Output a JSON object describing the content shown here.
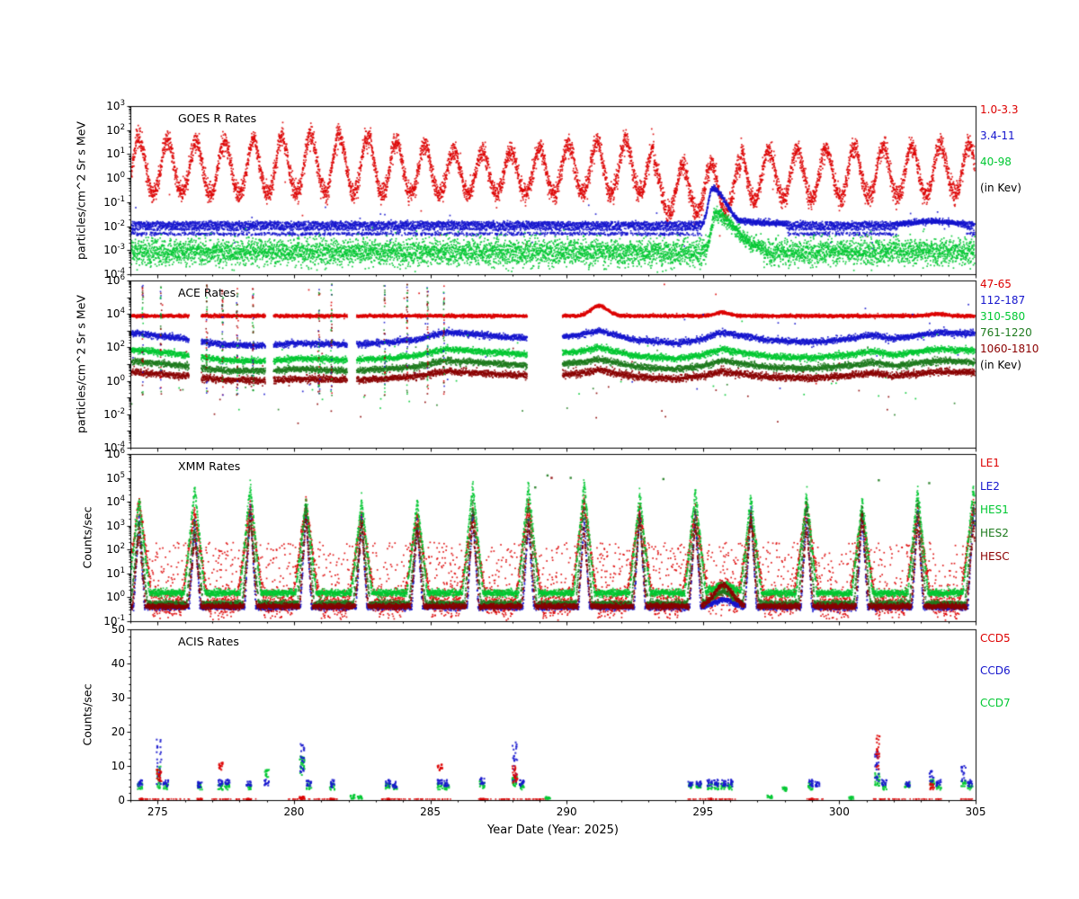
{
  "figure": {
    "xlabel": "Year Date (Year: 2025)",
    "background": "#ffffff",
    "axis_color": "#000000",
    "x_range": [
      274,
      305
    ],
    "x_ticks": [
      275,
      280,
      285,
      290,
      295,
      300,
      305
    ]
  },
  "colors": {
    "red": "#dd0000",
    "blue": "#1515cd",
    "green": "#00c832",
    "darkgreen": "#1e7b1e",
    "maroon": "#8b0000",
    "black": "#000000"
  },
  "chart_data": [
    {
      "type": "scatter",
      "title": "GOES R Rates",
      "ylabel": "particles/cm^2 Sr s MeV",
      "yscale": "log",
      "ylim": [
        0.0001,
        1000.0
      ],
      "xlim": [
        274,
        305
      ],
      "ytick_exponents": [
        3,
        2,
        1,
        0,
        -1,
        -2,
        -3,
        -4
      ],
      "legend": [
        {
          "label": "1.0-3.3",
          "color": "red"
        },
        {
          "label": "3.4-11",
          "color": "blue"
        },
        {
          "label": "40-98",
          "color": "green"
        },
        {
          "label": "(in Kev)",
          "color": "black"
        }
      ],
      "series": [
        {
          "name": "1.0-3.3",
          "color": "red",
          "kind": "oscillating",
          "step": 0.0045,
          "period": 1.05,
          "base_log": -0.62,
          "amp_log": 2.1,
          "amp_mod": 0.45,
          "noise": 0.22,
          "power": 1.15,
          "drop_prob": 0.0015,
          "quiet": {
            "from": 293.2,
            "to": 296.4,
            "base_log": -1.45,
            "amp_log": 2.0
          },
          "after": {
            "from": 296.4,
            "base_log": -0.9,
            "amp_log": 2.05,
            "recover_per_day": 0.03
          }
        },
        {
          "name": "3.4-11",
          "color": "blue",
          "kind": "banded",
          "step": 0.0045,
          "levels_log": [
            -2.32,
            -2.12,
            -2.02,
            -1.94,
            -1.86
          ],
          "noise": 0.035,
          "outlier_prob": 0.004,
          "event": {
            "t0": 295.35,
            "rise_w": 0.16,
            "fall_w": 0.5,
            "amp": 1.6,
            "tail_amp": 0.32,
            "tail_until": 299
          },
          "bump2": {
            "t0": 303.4,
            "w": 0.9,
            "amp": 0.22
          }
        },
        {
          "name": "40-98",
          "color": "green",
          "kind": "band",
          "step": 0.0045,
          "base_log": -3.08,
          "noise": 0.27,
          "event": {
            "t0": 295.45,
            "rise_w": 0.14,
            "fall_w": 0.75,
            "amp": 1.55
          }
        }
      ]
    },
    {
      "type": "scatter",
      "title": "ACE Rates",
      "ylabel": "particles/cm^2 Sr s MeV",
      "yscale": "log",
      "ylim": [
        0.0001,
        1000000.0
      ],
      "xlim": [
        274,
        305
      ],
      "ytick_exponents": [
        6,
        4,
        2,
        0,
        -2,
        -4
      ],
      "legend": [
        {
          "label": "47-65",
          "color": "red"
        },
        {
          "label": "112-187",
          "color": "blue"
        },
        {
          "label": "310-580",
          "color": "green"
        },
        {
          "label": "761-1220",
          "color": "darkgreen"
        },
        {
          "label": "1060-1810",
          "color": "maroon"
        },
        {
          "label": "(in Kev)",
          "color": "black"
        }
      ],
      "gaps": [
        [
          276.15,
          276.6
        ],
        [
          278.95,
          279.25
        ],
        [
          281.95,
          282.3
        ],
        [
          288.55,
          289.85
        ]
      ],
      "glitch_times": [
        274.45,
        275.12,
        276.8,
        277.38,
        277.92,
        278.5,
        280.92,
        281.38,
        283.33,
        284.15,
        284.9,
        285.5
      ],
      "trend": [
        [
          274,
          0.9
        ],
        [
          275,
          0.75
        ],
        [
          276,
          0.55
        ],
        [
          277.5,
          0.2
        ],
        [
          279,
          0.15
        ],
        [
          280,
          0.3
        ],
        [
          281,
          0.28
        ],
        [
          282,
          0.2
        ],
        [
          283.5,
          0.35
        ],
        [
          284.5,
          0.5
        ],
        [
          285.5,
          0.95
        ],
        [
          286.5,
          0.85
        ],
        [
          287.5,
          0.7
        ],
        [
          289,
          0.55
        ],
        [
          290.5,
          0.8
        ],
        [
          291.2,
          1.05
        ],
        [
          292.5,
          0.5
        ],
        [
          294,
          0.3
        ],
        [
          295,
          0.55
        ],
        [
          295.7,
          0.95
        ],
        [
          296.5,
          0.7
        ],
        [
          297.5,
          0.45
        ],
        [
          299,
          0.35
        ],
        [
          300.5,
          0.6
        ],
        [
          301.2,
          0.8
        ],
        [
          302,
          0.55
        ],
        [
          303,
          0.8
        ],
        [
          303.7,
          0.95
        ],
        [
          305,
          0.85
        ]
      ],
      "series": [
        {
          "name": "47-65",
          "color": "red",
          "kind": "flat",
          "step": 0.006,
          "base_log": 3.88,
          "noise": 0.045,
          "spike_prob": 0.0025,
          "bumps": [
            {
              "t0": 291.2,
              "w": 0.3,
              "amp": 0.6
            },
            {
              "t0": 295.7,
              "w": 0.25,
              "amp": 0.2
            },
            {
              "t0": 303.6,
              "w": 0.3,
              "amp": 0.12
            }
          ]
        },
        {
          "name": "112-187",
          "color": "blue",
          "kind": "trend",
          "step": 0.006,
          "offset_log": 1.95,
          "scale": 1.0,
          "noise": 0.09
        },
        {
          "name": "310-580",
          "color": "green",
          "kind": "trend",
          "step": 0.006,
          "offset_log": 1.05,
          "scale": 0.9,
          "noise": 0.09
        },
        {
          "name": "761-1220",
          "color": "darkgreen",
          "kind": "trend",
          "step": 0.006,
          "offset_log": 0.45,
          "scale": 0.8,
          "noise": 0.09
        },
        {
          "name": "1060-1810",
          "color": "maroon",
          "kind": "trend",
          "step": 0.006,
          "offset_log": -0.1,
          "scale": 0.7,
          "noise": 0.1
        }
      ]
    },
    {
      "type": "scatter",
      "title": "XMM Rates",
      "ylabel": "Counts/sec",
      "yscale": "log",
      "ylim": [
        0.1,
        1000000.0
      ],
      "xlim": [
        274,
        305
      ],
      "ytick_exponents": [
        6,
        5,
        4,
        3,
        2,
        1,
        0,
        -1
      ],
      "legend": [
        {
          "label": "LE1",
          "color": "red"
        },
        {
          "label": "LE2",
          "color": "blue"
        },
        {
          "label": "HES1",
          "color": "green"
        },
        {
          "label": "HES2",
          "color": "darkgreen"
        },
        {
          "label": "HESC",
          "color": "maroon"
        }
      ],
      "peaks": {
        "start": 274.32,
        "period": 2.04
      },
      "event": {
        "t0": 295.75,
        "w": 0.33
      },
      "outlier_points": [
        [
          288.85,
          4.6,
          "darkgreen"
        ],
        [
          289.3,
          5.1,
          "darkgreen"
        ],
        [
          289.45,
          5.0,
          "maroon"
        ],
        [
          290.15,
          5.0,
          "darkgreen"
        ],
        [
          293.55,
          4.95,
          "darkgreen"
        ],
        [
          301.45,
          4.9,
          "darkgreen"
        ],
        [
          303.3,
          4.78,
          "darkgreen"
        ]
      ],
      "series": [
        {
          "name": "LE1",
          "color": "red",
          "step": 0.005,
          "base_log": -0.25,
          "noise": 0.3,
          "cloud_prob": 0.22,
          "cloud_lo": 0,
          "cloud_hi": 2.3,
          "peak_w": 0.5,
          "amp_lo": 3.6,
          "amp_hi": 4.4,
          "event_amp": 0.5
        },
        {
          "name": "LE2",
          "color": "blue",
          "step": 0.005,
          "base_log": -0.4,
          "noise": 0.06,
          "peak_w": 0.2,
          "amp_lo": 3.4,
          "amp_hi": 4.2,
          "event_amp": 0.3
        },
        {
          "name": "HES1",
          "color": "green",
          "step": 0.005,
          "base_log": 0.18,
          "noise": 0.07,
          "peak_w": 0.38,
          "amp_lo": 3.7,
          "amp_hi": 4.6,
          "event_amp": 0.35
        },
        {
          "name": "HES2",
          "color": "darkgreen",
          "step": 0.005,
          "base_log": -0.26,
          "noise": 0.06,
          "peak_w": 0.3,
          "amp_lo": 3.4,
          "amp_hi": 4.3,
          "event_amp": 0.5
        },
        {
          "name": "HESC",
          "color": "maroon",
          "step": 0.005,
          "base_log": -0.38,
          "noise": 0.06,
          "peak_w": 0.24,
          "amp_lo": 3.0,
          "amp_hi": 3.9,
          "event_amp": 0.9
        }
      ]
    },
    {
      "type": "scatter",
      "title": "ACIS Rates",
      "ylabel": "Counts/sec",
      "yscale": "linear",
      "ylim": [
        0,
        50
      ],
      "yticks": [
        0,
        10,
        20,
        30,
        40,
        50
      ],
      "legend": [
        {
          "label": "CCD5",
          "color": "red"
        },
        {
          "label": "CCD6",
          "color": "blue"
        },
        {
          "label": "CCD7",
          "color": "green"
        }
      ],
      "red_floor": {
        "y": [
          0.1,
          0.35
        ],
        "segments": [
          [
            274.3,
            276.2
          ],
          [
            277.0,
            278.6
          ],
          [
            279.8,
            281.6
          ],
          [
            283.2,
            285.8
          ],
          [
            286.7,
            289.3
          ],
          [
            294.4,
            296.2
          ],
          [
            298.8,
            299.4
          ],
          [
            301.2,
            303.8
          ],
          [
            304.4,
            305.0
          ]
        ]
      },
      "clusters": [
        {
          "x": 274.35,
          "ccd5": [
            0.1,
            0.4
          ],
          "ccd6": [
            3.8,
            6
          ],
          "ccd7": [
            3,
            5
          ]
        },
        {
          "x": 275.05,
          "n": 26,
          "ccd5": [
            5,
            9
          ],
          "ccd6": [
            4,
            18
          ],
          "ccd7": [
            3,
            10
          ]
        },
        {
          "x": 275.3,
          "ccd6": [
            4,
            6
          ],
          "ccd7": [
            3,
            5
          ]
        },
        {
          "x": 276.55,
          "ccd5": [
            0.1,
            0.4
          ],
          "ccd6": [
            3.5,
            5.5
          ],
          "ccd7": [
            3,
            5
          ]
        },
        {
          "x": 277.3,
          "ccd5": [
            8.5,
            11
          ],
          "ccd6": [
            4,
            6
          ],
          "ccd7": [
            3,
            5
          ]
        },
        {
          "x": 277.55,
          "ccd6": [
            4,
            6
          ],
          "ccd7": [
            3,
            5
          ]
        },
        {
          "x": 278.35,
          "ccd5": [
            0.1,
            0.4
          ],
          "ccd6": [
            4,
            5.5
          ],
          "ccd7": [
            3,
            5
          ]
        },
        {
          "x": 279.0,
          "ccd6": [
            4,
            6
          ],
          "ccd7": [
            6.5,
            9
          ]
        },
        {
          "x": 280.3,
          "n": 26,
          "ccd5": [
            0.3,
            1
          ],
          "ccd6": [
            8,
            17
          ],
          "ccd7": [
            7,
            13
          ]
        },
        {
          "x": 280.55,
          "ccd6": [
            4,
            6
          ],
          "ccd7": [
            3,
            5
          ]
        },
        {
          "x": 281.4,
          "ccd5": [
            0.1,
            0.4
          ],
          "ccd6": [
            3.5,
            6
          ],
          "ccd7": [
            3,
            5
          ]
        },
        {
          "x": 282.15,
          "ccd7": [
            0.3,
            1.6
          ]
        },
        {
          "x": 282.4,
          "ccd7": [
            0.3,
            1.2
          ]
        },
        {
          "x": 283.45,
          "ccd5": [
            0.1,
            0.4
          ],
          "ccd6": [
            4,
            6
          ],
          "ccd7": [
            3,
            5
          ]
        },
        {
          "x": 283.7,
          "ccd6": [
            3.5,
            5.5
          ],
          "ccd7": [
            3,
            4.5
          ]
        },
        {
          "x": 285.35,
          "ccd5": [
            8.5,
            10.5
          ],
          "ccd6": [
            4.5,
            6
          ],
          "ccd7": [
            3,
            5
          ]
        },
        {
          "x": 285.6,
          "ccd6": [
            4,
            6
          ],
          "ccd7": [
            3,
            5
          ]
        },
        {
          "x": 286.9,
          "ccd5": [
            0.1,
            0.4
          ],
          "ccd6": [
            4.5,
            6.5
          ],
          "ccd7": [
            3.5,
            5.5
          ]
        },
        {
          "x": 288.1,
          "n": 26,
          "ccd5": [
            5,
            10
          ],
          "ccd6": [
            5,
            17
          ],
          "ccd7": [
            4,
            7
          ]
        },
        {
          "x": 288.35,
          "ccd6": [
            4,
            6
          ],
          "ccd7": [
            3,
            5
          ]
        },
        {
          "x": 289.3,
          "ccd7": [
            0.3,
            1
          ]
        },
        {
          "x": 294.55,
          "ccd6": [
            4,
            5.5
          ],
          "ccd7": [
            3.5,
            5
          ]
        },
        {
          "x": 294.85,
          "ccd6": [
            4,
            5.5
          ],
          "ccd7": [
            3.5,
            5
          ]
        },
        {
          "x": 295.25,
          "ccd5": [
            0.1,
            0.4
          ],
          "ccd6": [
            4,
            6
          ],
          "ccd7": [
            3,
            5
          ]
        },
        {
          "x": 295.5,
          "ccd6": [
            4,
            6
          ],
          "ccd7": [
            3,
            5
          ]
        },
        {
          "x": 295.75,
          "ccd6": [
            4,
            6
          ],
          "ccd7": [
            3,
            5
          ]
        },
        {
          "x": 296.0,
          "ccd6": [
            4,
            6
          ],
          "ccd7": [
            3,
            5
          ]
        },
        {
          "x": 297.45,
          "ccd7": [
            0.4,
            1.4
          ]
        },
        {
          "x": 298.0,
          "ccd7": [
            2.5,
            4
          ]
        },
        {
          "x": 298.95,
          "ccd5": [
            0.1,
            0.4
          ],
          "ccd6": [
            4,
            6
          ],
          "ccd7": [
            3,
            5
          ]
        },
        {
          "x": 299.2,
          "ccd6": [
            4,
            5.5
          ]
        },
        {
          "x": 300.45,
          "ccd7": [
            0.3,
            1
          ]
        },
        {
          "x": 301.4,
          "n": 26,
          "ccd5": [
            8,
            19
          ],
          "ccd6": [
            5,
            15
          ],
          "ccd7": [
            4,
            8
          ]
        },
        {
          "x": 301.65,
          "ccd6": [
            4,
            6
          ],
          "ccd7": [
            3,
            5
          ]
        },
        {
          "x": 302.5,
          "ccd6": [
            4,
            5.5
          ],
          "ccd7": [
            3.5,
            5
          ]
        },
        {
          "x": 303.4,
          "ccd5": [
            3,
            5
          ],
          "ccd6": [
            5,
            9
          ],
          "ccd7": [
            4,
            6
          ]
        },
        {
          "x": 303.65,
          "ccd6": [
            4,
            6
          ],
          "ccd7": [
            3,
            5
          ]
        },
        {
          "x": 304.55,
          "ccd6": [
            5,
            10
          ],
          "ccd7": [
            4,
            6
          ]
        },
        {
          "x": 304.8,
          "ccd6": [
            4,
            6
          ],
          "ccd7": [
            3,
            5
          ]
        }
      ]
    }
  ]
}
